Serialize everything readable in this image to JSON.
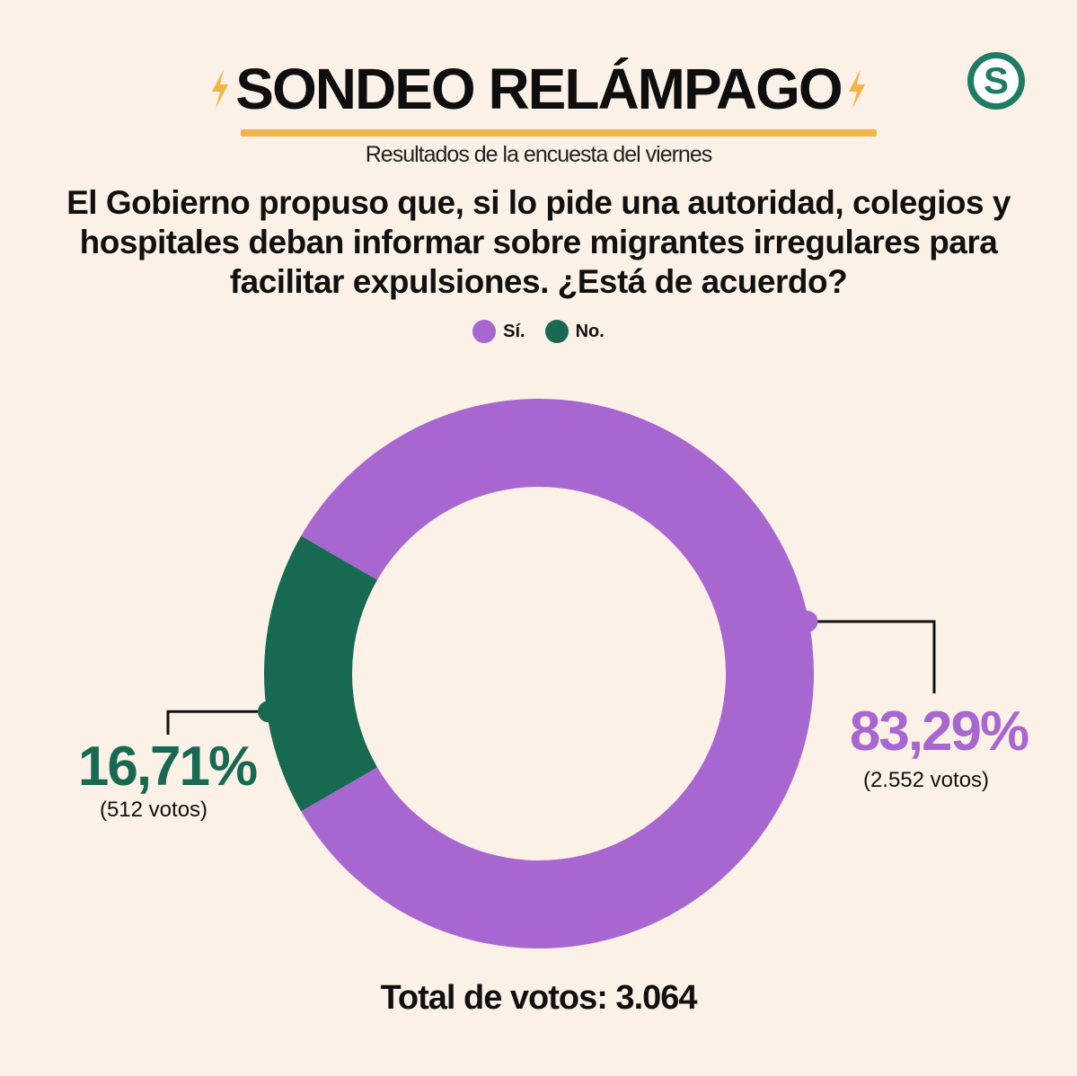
{
  "header": {
    "title": "SONDEO RELÁMPAGO",
    "subtitle": "Resultados de la encuesta del viernes",
    "logo_letter": "S"
  },
  "question": "El Gobierno propuso que, si lo pide una autoridad, colegios y hospitales deban informar sobre migrantes irregulares para facilitar expulsiones. ¿Está de acuerdo?",
  "colors": {
    "background": "#fcf1e6",
    "si": "#a867d0",
    "no": "#176952",
    "accent": "#f5b448",
    "logo": "#1d7c63"
  },
  "icons": [
    "lightning-bolt-icon",
    "lightning-bolt-icon"
  ],
  "chart_data": {
    "type": "pie",
    "variant": "donut",
    "categories": [
      "Sí.",
      "No."
    ],
    "values": [
      83.29,
      16.71
    ],
    "value_labels": [
      "83,29%",
      "16,71%"
    ],
    "votes": [
      2552,
      512
    ],
    "vote_labels": [
      "(2.552 votos)",
      "(512 votos)"
    ],
    "legend": [
      "Sí.",
      "No."
    ],
    "legend_position": "top-center",
    "total_label": "Total de votos: 3.064"
  }
}
